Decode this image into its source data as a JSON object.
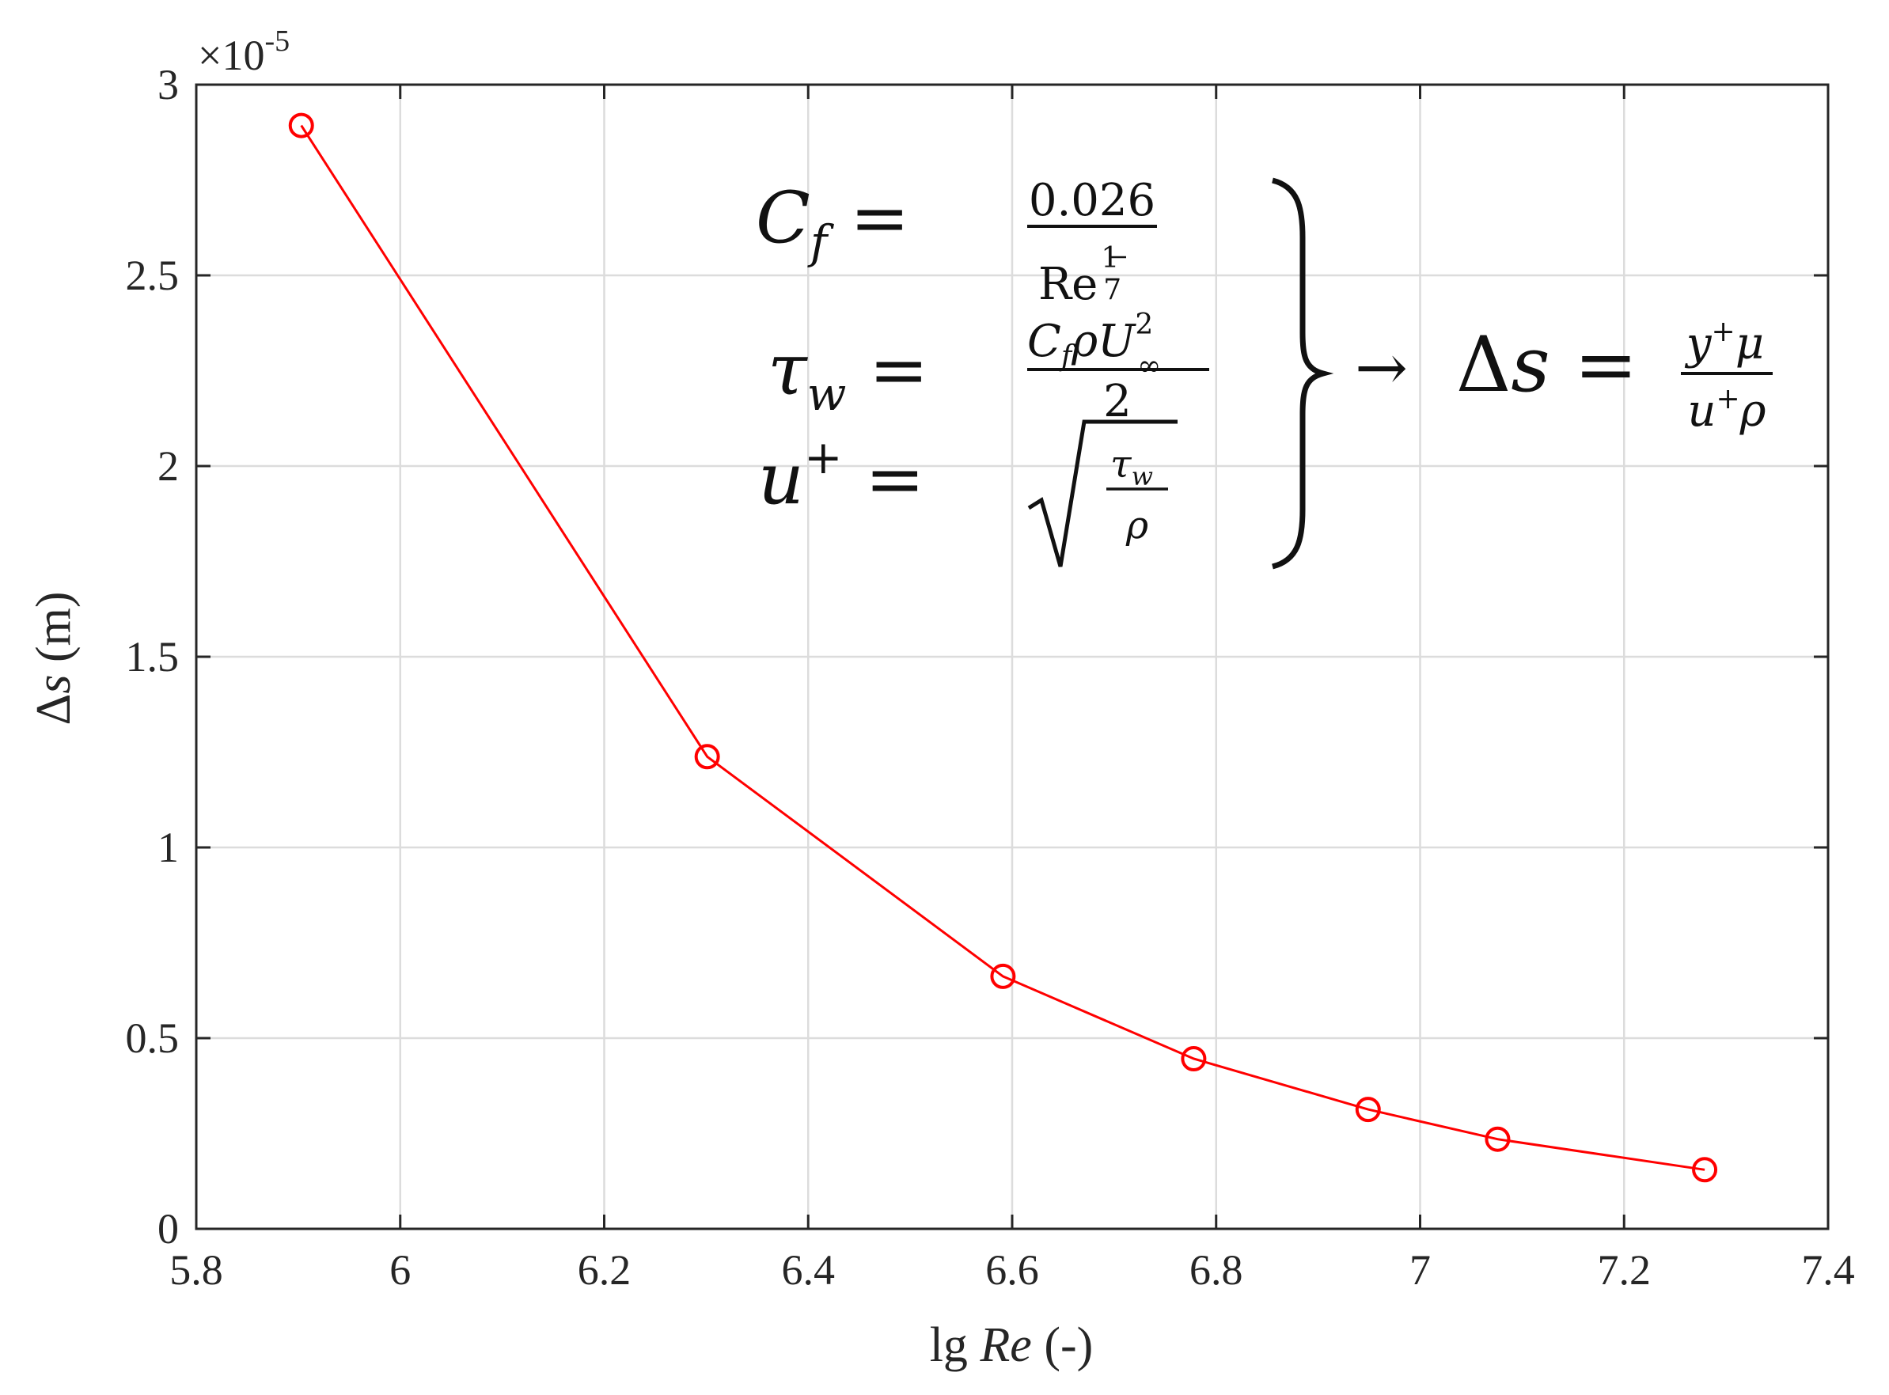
{
  "chart_data": {
    "type": "line",
    "x": [
      5.903,
      6.301,
      6.591,
      6.778,
      6.949,
      7.076,
      7.279
    ],
    "series": [
      {
        "values": [
          2.893e-05,
          1.238e-05,
          6.62e-06,
          4.46e-06,
          3.13e-06,
          2.35e-06,
          1.55e-06
        ],
        "color": "#ff0000",
        "marker": "circle"
      }
    ],
    "xlabel": "lg Re (-)",
    "ylabel": "Δs (m)",
    "xlim": [
      5.8,
      7.4
    ],
    "ylim": [
      0,
      3e-05
    ],
    "xticks": [
      5.8,
      6,
      6.2,
      6.4,
      6.6,
      6.8,
      7,
      7.2,
      7.4
    ],
    "xtick_labels": [
      "5.8",
      "6",
      "6.2",
      "6.4",
      "6.6",
      "6.8",
      "7",
      "7.2",
      "7.4"
    ],
    "yticks": [
      0,
      5e-06,
      1e-05,
      1.5e-05,
      2e-05,
      2.5e-05,
      3e-05
    ],
    "ytick_labels": [
      "0",
      "0.5",
      "1",
      "1.5",
      "2",
      "2.5",
      "3"
    ],
    "y_exponent_label": "×10-5",
    "grid": true,
    "annotation": {
      "cf_lhs": "Cf =",
      "cf_num": "0.026",
      "cf_den": "Re1/7",
      "tau_lhs": "τw =",
      "tau_num": "CfρU∞2",
      "tau_den": "2",
      "u_lhs": "u+ =",
      "u_num": "τw",
      "u_den": "ρ",
      "arrow": "→",
      "ds_lhs": "Δs =",
      "ds_num": "y+μ",
      "ds_den": "u+ρ"
    }
  }
}
